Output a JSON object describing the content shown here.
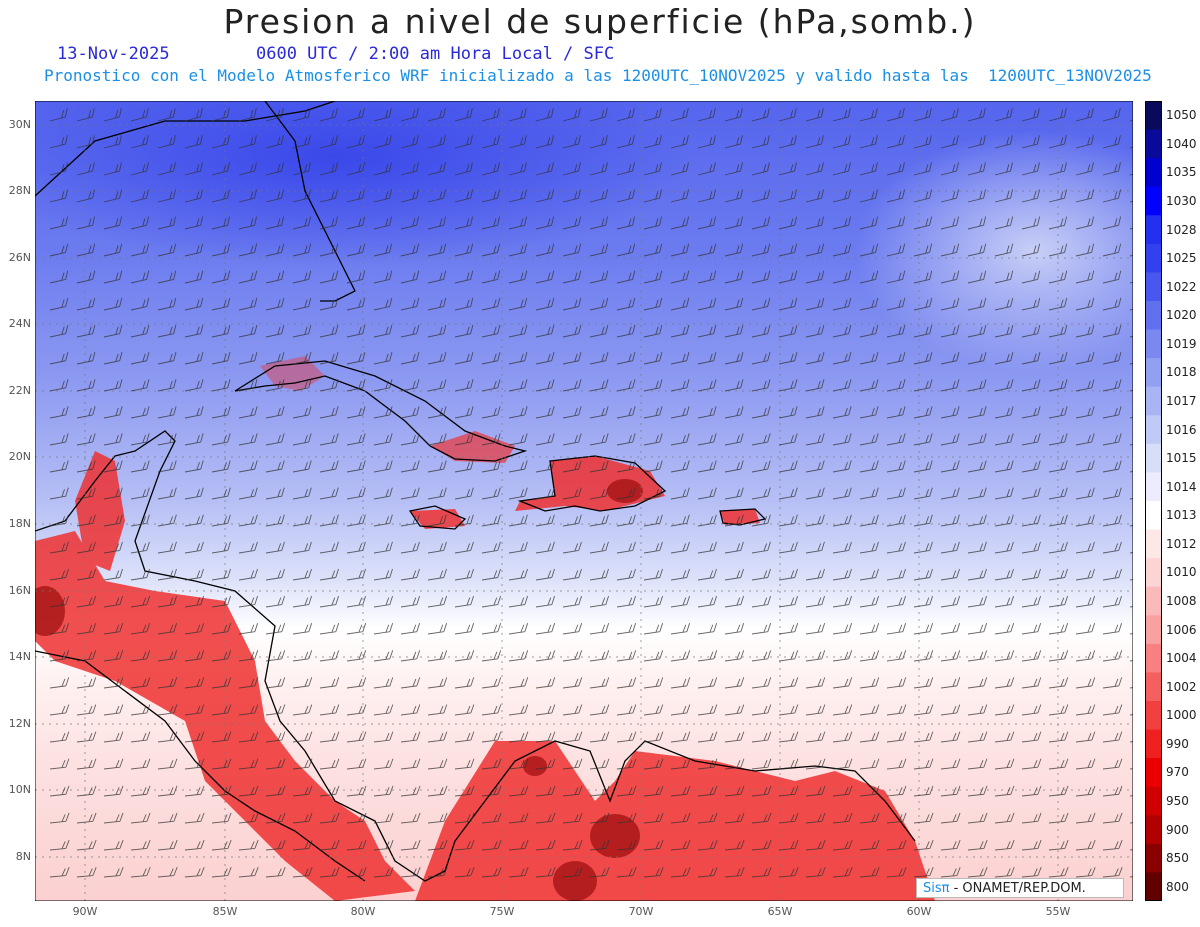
{
  "header": {
    "title": "Presion a nivel de superficie (hPa,somb.)",
    "date": "13-Nov-2025",
    "time": "0600 UTC / 2:00 am Hora Local / SFC",
    "forecast": "Pronostico con el Modelo Atmosferico WRF inicializado a las 1200UTC_10NOV2025 y valido hasta las  1200UTC_13NOV2025"
  },
  "lat_labels": [
    "30N",
    "28N",
    "26N",
    "24N",
    "22N",
    "20N",
    "18N",
    "16N",
    "14N",
    "12N",
    "10N",
    "8N"
  ],
  "lon_labels": [
    "90W",
    "85W",
    "80W",
    "75W",
    "70W",
    "65W",
    "60W",
    "55W"
  ],
  "colorbar": {
    "levels": [
      "1050",
      "1040",
      "1035",
      "1030",
      "1028",
      "1025",
      "1022",
      "1020",
      "1019",
      "1018",
      "1017",
      "1016",
      "1015",
      "1014",
      "1013",
      "1012",
      "1010",
      "1008",
      "1006",
      "1004",
      "1002",
      "1000",
      "990",
      "970",
      "950",
      "900",
      "850",
      "800"
    ],
    "colors": [
      "#0a0a5a",
      "#0a0a9a",
      "#0000d0",
      "#0000ff",
      "#2430f0",
      "#3240ee",
      "#4858ee",
      "#6070ee",
      "#7a88f0",
      "#92a0f2",
      "#a8b4f4",
      "#c0caf6",
      "#d8def8",
      "#ececfc",
      "#ffffff",
      "#fde8e8",
      "#fcd4d4",
      "#fbbaba",
      "#f9a0a0",
      "#f78080",
      "#f46060",
      "#f24040",
      "#ee2020",
      "#ea0000",
      "#d00000",
      "#b00000",
      "#8a0000",
      "#600000"
    ]
  },
  "logo": {
    "sis": "Sisπ",
    "rest": " - ONAMET/REP.DOM."
  }
}
